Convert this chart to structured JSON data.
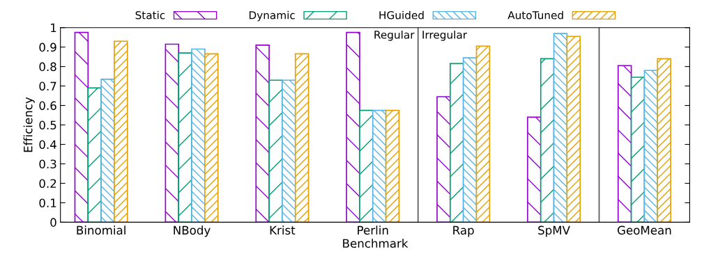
{
  "chart_data": {
    "type": "bar",
    "xlabel": "Benchmark",
    "ylabel": "Efficiency",
    "categories": [
      "Binomial",
      "NBody",
      "Krist",
      "Perlin",
      "Rap",
      "SpMV",
      "GeoMean"
    ],
    "series": [
      {
        "name": "Static",
        "color": "#9400d3",
        "values": [
          0.975,
          0.915,
          0.91,
          0.975,
          0.645,
          0.54,
          0.805
        ]
      },
      {
        "name": "Dynamic",
        "color": "#009e73",
        "values": [
          0.69,
          0.87,
          0.73,
          0.575,
          0.815,
          0.84,
          0.745
        ]
      },
      {
        "name": "HGuided",
        "color": "#56b4e9",
        "values": [
          0.735,
          0.89,
          0.73,
          0.575,
          0.845,
          0.97,
          0.78
        ]
      },
      {
        "name": "AutoTuned",
        "color": "#e69f00",
        "values": [
          0.93,
          0.865,
          0.865,
          0.575,
          0.905,
          0.955,
          0.84
        ]
      }
    ],
    "ylim": [
      0,
      1
    ],
    "yticks": [
      0,
      0.1,
      0.2,
      0.3,
      0.4,
      0.5,
      0.6,
      0.7,
      0.8,
      0.9,
      1
    ],
    "annotations": [
      "Regular",
      "Irregular"
    ],
    "grid": false,
    "legend": "top"
  }
}
